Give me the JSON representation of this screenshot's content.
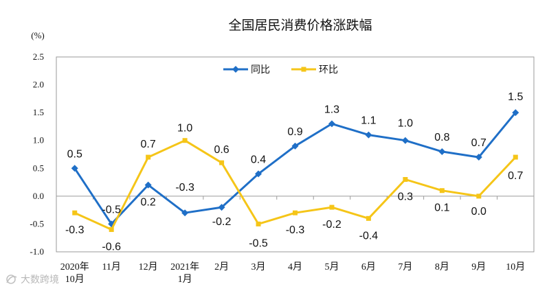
{
  "chart_data": {
    "type": "line",
    "title": "全国居民消费价格涨跌幅",
    "unit_label": "(%)",
    "categories": [
      [
        "2020年",
        "10月"
      ],
      [
        "11月"
      ],
      [
        "12月"
      ],
      [
        "2021年",
        "1月"
      ],
      [
        "2月"
      ],
      [
        "3月"
      ],
      [
        "4月"
      ],
      [
        "5月"
      ],
      [
        "6月"
      ],
      [
        "7月"
      ],
      [
        "8月"
      ],
      [
        "9月"
      ],
      [
        "10月"
      ]
    ],
    "ylim": [
      -1.0,
      2.5
    ],
    "yticks": [
      "2.5",
      "2.0",
      "1.5",
      "1.0",
      "0.5",
      "0.0",
      "-0.5",
      "-1.0"
    ],
    "ytick_values": [
      2.5,
      2.0,
      1.5,
      1.0,
      0.5,
      0.0,
      -0.5,
      -1.0
    ],
    "grid": false,
    "legend_position": "top-center",
    "series": [
      {
        "name": "同比",
        "color": "#1f6fc7",
        "marker": "diamond",
        "values": [
          0.5,
          -0.5,
          0.2,
          -0.3,
          -0.2,
          0.4,
          0.9,
          1.3,
          1.1,
          1.0,
          0.8,
          0.7,
          1.5
        ],
        "labels": [
          "0.5",
          "-0.5",
          "0.2",
          "-0.3",
          "-0.2",
          "0.4",
          "0.9",
          "1.3",
          "1.1",
          "1.0",
          "0.8",
          "0.7",
          "1.5"
        ]
      },
      {
        "name": "环比",
        "color": "#f5c518",
        "marker": "square",
        "values": [
          -0.3,
          -0.6,
          0.7,
          1.0,
          0.6,
          -0.5,
          -0.3,
          -0.2,
          -0.4,
          0.3,
          0.1,
          0.0,
          0.7
        ],
        "labels": [
          "-0.3",
          "-0.6",
          "0.7",
          "1.0",
          "0.6",
          "-0.5",
          "-0.3",
          "-0.2",
          "-0.4",
          "0.3",
          "0.1",
          "0.0",
          "0.7"
        ]
      }
    ]
  },
  "watermark": "大数跨境",
  "watermark_icon": "logo-swirl-icon"
}
